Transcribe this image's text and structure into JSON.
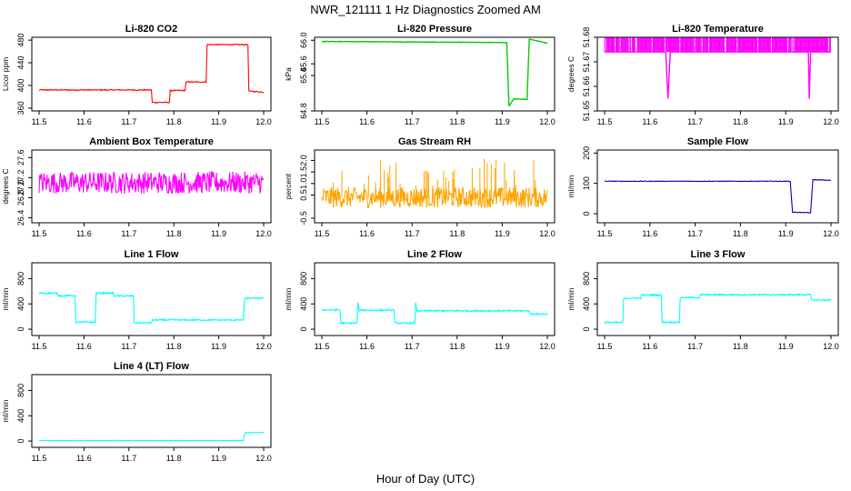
{
  "figure": {
    "title": "NWR_121111  1 Hz Diagnostics Zoomed AM",
    "xlabel": "Hour of Day (UTC)"
  },
  "chart_data": [
    {
      "type": "line",
      "title": "Li-820 CO2",
      "ylabel": "Licor ppm",
      "color": "#ff0000",
      "xlim": [
        11.5,
        12.0
      ],
      "ylim": [
        355,
        485
      ],
      "x_ticks": [
        "11.5",
        "11.6",
        "11.7",
        "11.8",
        "11.9",
        "12.0"
      ],
      "y_ticks": [
        {
          "v": 360,
          "label": "360"
        },
        {
          "v": 400,
          "label": "400"
        },
        {
          "v": 440,
          "label": "440"
        },
        {
          "v": 480,
          "label": "480"
        }
      ],
      "series": [
        {
          "noise": 1,
          "points": [
            [
              11.5,
              392
            ],
            [
              11.75,
              392
            ],
            [
              11.752,
              370
            ],
            [
              11.79,
              370
            ],
            [
              11.792,
              391
            ],
            [
              11.825,
              391
            ],
            [
              11.827,
              406
            ],
            [
              11.872,
              406
            ],
            [
              11.874,
              472
            ],
            [
              11.965,
              472
            ],
            [
              11.967,
              390
            ],
            [
              12.0,
              388
            ]
          ]
        }
      ]
    },
    {
      "type": "line",
      "title": "Li-820 Pressure",
      "ylabel": "kPa",
      "color": "#00cc00",
      "xlim": [
        11.5,
        12.0
      ],
      "ylim": [
        64.8,
        66.05
      ],
      "x_ticks": [
        "11.5",
        "11.6",
        "11.7",
        "11.8",
        "11.9",
        "12.0"
      ],
      "y_ticks": [
        {
          "v": 64.8,
          "label": "64.8"
        },
        {
          "v": 65.4,
          "label": "65.4"
        },
        {
          "v": 65.6,
          "label": "65.6"
        },
        {
          "v": 66.0,
          "label": "66.0"
        }
      ],
      "series": [
        {
          "noise": 0.004,
          "points": [
            [
              11.5,
              65.98
            ],
            [
              11.91,
              65.96
            ],
            [
              11.915,
              64.88
            ],
            [
              11.925,
              65.0
            ],
            [
              11.955,
              65.0
            ],
            [
              11.96,
              66.02
            ],
            [
              12.0,
              65.95
            ]
          ]
        }
      ]
    },
    {
      "type": "line",
      "title": "Li-820 Temperature",
      "ylabel": "degrees C",
      "color": "#ff00ff",
      "xlim": [
        11.5,
        12.0
      ],
      "ylim": [
        51.65,
        51.68
      ],
      "x_ticks": [
        "11.5",
        "11.6",
        "11.7",
        "11.8",
        "11.9",
        "12.0"
      ],
      "y_ticks": [
        {
          "v": 51.65,
          "label": "51.65"
        },
        {
          "v": 51.66,
          "label": "51.66"
        },
        {
          "v": 51.67,
          "label": "51.67"
        },
        {
          "v": 51.68,
          "label": "51.68"
        }
      ],
      "values_min": 51.65,
      "values_max": 51.68,
      "series": [
        {
          "noise": 0,
          "points": [
            [
              11.5,
              51.674
            ],
            [
              11.635,
              51.674
            ],
            [
              11.64,
              51.655
            ],
            [
              11.645,
              51.674
            ],
            [
              11.95,
              51.674
            ],
            [
              11.952,
              51.655
            ],
            [
              11.955,
              51.674
            ],
            [
              12.0,
              51.674
            ]
          ]
        }
      ]
    },
    {
      "type": "line",
      "title": "Ambient Box Temperature",
      "ylabel": "degrees C",
      "color": "#ff00ff",
      "xlim": [
        11.5,
        12.0
      ],
      "ylim": [
        26.3,
        27.75
      ],
      "x_ticks": [
        "11.5",
        "11.6",
        "11.7",
        "11.8",
        "11.9",
        "12.0"
      ],
      "y_ticks": [
        {
          "v": 26.4,
          "label": "26.4"
        },
        {
          "v": 26.8,
          "label": "26.8"
        },
        {
          "v": 27.0,
          "label": "27.0"
        },
        {
          "v": 27.2,
          "label": "27.2"
        },
        {
          "v": 27.6,
          "label": "27.6"
        }
      ],
      "series": [
        {
          "noise": 0.22,
          "points": [
            [
              11.5,
              27.1
            ],
            [
              12.0,
              27.1
            ]
          ]
        }
      ]
    },
    {
      "type": "line",
      "title": "Gas Stream RH",
      "ylabel": "percent",
      "color": "#ffa500",
      "xlim": [
        11.5,
        12.0
      ],
      "ylim": [
        -0.7,
        2.45
      ],
      "x_ticks": [
        "11.5",
        "11.6",
        "11.7",
        "11.8",
        "11.9",
        "12.0"
      ],
      "y_ticks": [
        {
          "v": -0.5,
          "label": "-0.5"
        },
        {
          "v": 0.5,
          "label": "0.5"
        },
        {
          "v": 1.0,
          "label": "1.0"
        },
        {
          "v": 1.5,
          "label": "1.5"
        },
        {
          "v": 2.0,
          "label": "2.0"
        }
      ],
      "series": [
        {
          "noise": 0.45,
          "points": [
            [
              11.5,
              0.4
            ],
            [
              12.0,
              0.4
            ]
          ]
        }
      ]
    },
    {
      "type": "line",
      "title": "Sample Flow",
      "ylabel": "ml/min",
      "color": "#0000cc",
      "xlim": [
        11.5,
        12.0
      ],
      "ylim": [
        -30,
        210
      ],
      "x_ticks": [
        "11.5",
        "11.6",
        "11.7",
        "11.8",
        "11.9",
        "12.0"
      ],
      "y_ticks": [
        {
          "v": 0,
          "label": "0"
        },
        {
          "v": 100,
          "label": "100"
        },
        {
          "v": 200,
          "label": "200"
        }
      ],
      "series": [
        {
          "noise": 1,
          "points": [
            [
              11.5,
              107
            ],
            [
              11.91,
              107
            ],
            [
              11.915,
              5
            ],
            [
              11.955,
              3
            ],
            [
              11.96,
              112
            ],
            [
              12.0,
              110
            ]
          ]
        }
      ]
    },
    {
      "type": "line",
      "title": "Line 1 Flow",
      "ylabel": "ml/min",
      "color": "#00ffff",
      "xlim": [
        11.5,
        12.0
      ],
      "ylim": [
        -100,
        1050
      ],
      "x_ticks": [
        "11.5",
        "11.6",
        "11.7",
        "11.8",
        "11.9",
        "12.0"
      ],
      "y_ticks": [
        {
          "v": 0,
          "label": "0"
        },
        {
          "v": 400,
          "label": "400"
        },
        {
          "v": 800,
          "label": "800"
        }
      ],
      "series": [
        {
          "noise": 12,
          "points": [
            [
              11.5,
              570
            ],
            [
              11.54,
              570
            ],
            [
              11.542,
              530
            ],
            [
              11.58,
              530
            ],
            [
              11.582,
              110
            ],
            [
              11.625,
              110
            ],
            [
              11.627,
              570
            ],
            [
              11.665,
              570
            ],
            [
              11.667,
              525
            ],
            [
              11.71,
              525
            ],
            [
              11.712,
              100
            ],
            [
              11.75,
              100
            ],
            [
              11.752,
              145
            ],
            [
              11.955,
              145
            ],
            [
              11.957,
              445
            ],
            [
              11.96,
              490
            ],
            [
              12.0,
              490
            ]
          ]
        }
      ]
    },
    {
      "type": "line",
      "title": "Line 2 Flow",
      "ylabel": "ml/min",
      "color": "#00ffff",
      "xlim": [
        11.5,
        12.0
      ],
      "ylim": [
        -100,
        1050
      ],
      "x_ticks": [
        "11.5",
        "11.6",
        "11.7",
        "11.8",
        "11.9",
        "12.0"
      ],
      "y_ticks": [
        {
          "v": 0,
          "label": "0"
        },
        {
          "v": 400,
          "label": "400"
        },
        {
          "v": 800,
          "label": "800"
        }
      ],
      "series": [
        {
          "noise": 12,
          "points": [
            [
              11.5,
              305
            ],
            [
              11.54,
              305
            ],
            [
              11.542,
              95
            ],
            [
              11.578,
              95
            ],
            [
              11.58,
              420
            ],
            [
              11.583,
              300
            ],
            [
              11.66,
              300
            ],
            [
              11.662,
              95
            ],
            [
              11.706,
              95
            ],
            [
              11.708,
              420
            ],
            [
              11.711,
              290
            ],
            [
              11.96,
              290
            ],
            [
              11.962,
              240
            ],
            [
              12.0,
              240
            ]
          ]
        }
      ]
    },
    {
      "type": "line",
      "title": "Line 3 Flow",
      "ylabel": "ml/min",
      "color": "#00ffff",
      "xlim": [
        11.5,
        12.0
      ],
      "ylim": [
        -100,
        1050
      ],
      "x_ticks": [
        "11.5",
        "11.6",
        "11.7",
        "11.8",
        "11.9",
        "12.0"
      ],
      "y_ticks": [
        {
          "v": 0,
          "label": "0"
        },
        {
          "v": 400,
          "label": "400"
        },
        {
          "v": 800,
          "label": "800"
        }
      ],
      "series": [
        {
          "noise": 12,
          "points": [
            [
              11.5,
              105
            ],
            [
              11.54,
              105
            ],
            [
              11.542,
              490
            ],
            [
              11.58,
              490
            ],
            [
              11.582,
              540
            ],
            [
              11.625,
              540
            ],
            [
              11.627,
              110
            ],
            [
              11.665,
              110
            ],
            [
              11.667,
              500
            ],
            [
              11.71,
              500
            ],
            [
              11.712,
              545
            ],
            [
              11.955,
              545
            ],
            [
              11.957,
              460
            ],
            [
              12.0,
              460
            ]
          ]
        }
      ]
    },
    {
      "type": "line",
      "title": "Line 4 (LT) Flow",
      "ylabel": "ml/min",
      "color": "#00ffff",
      "xlim": [
        11.5,
        12.0
      ],
      "ylim": [
        -100,
        1050
      ],
      "x_ticks": [
        "11.5",
        "11.6",
        "11.7",
        "11.8",
        "11.9",
        "12.0"
      ],
      "y_ticks": [
        {
          "v": 0,
          "label": "0"
        },
        {
          "v": 400,
          "label": "400"
        },
        {
          "v": 800,
          "label": "800"
        }
      ],
      "series": [
        {
          "noise": 3,
          "points": [
            [
              11.5,
              8
            ],
            [
              11.955,
              8
            ],
            [
              11.957,
              90
            ],
            [
              11.96,
              135
            ],
            [
              12.0,
              135
            ]
          ]
        }
      ]
    }
  ]
}
